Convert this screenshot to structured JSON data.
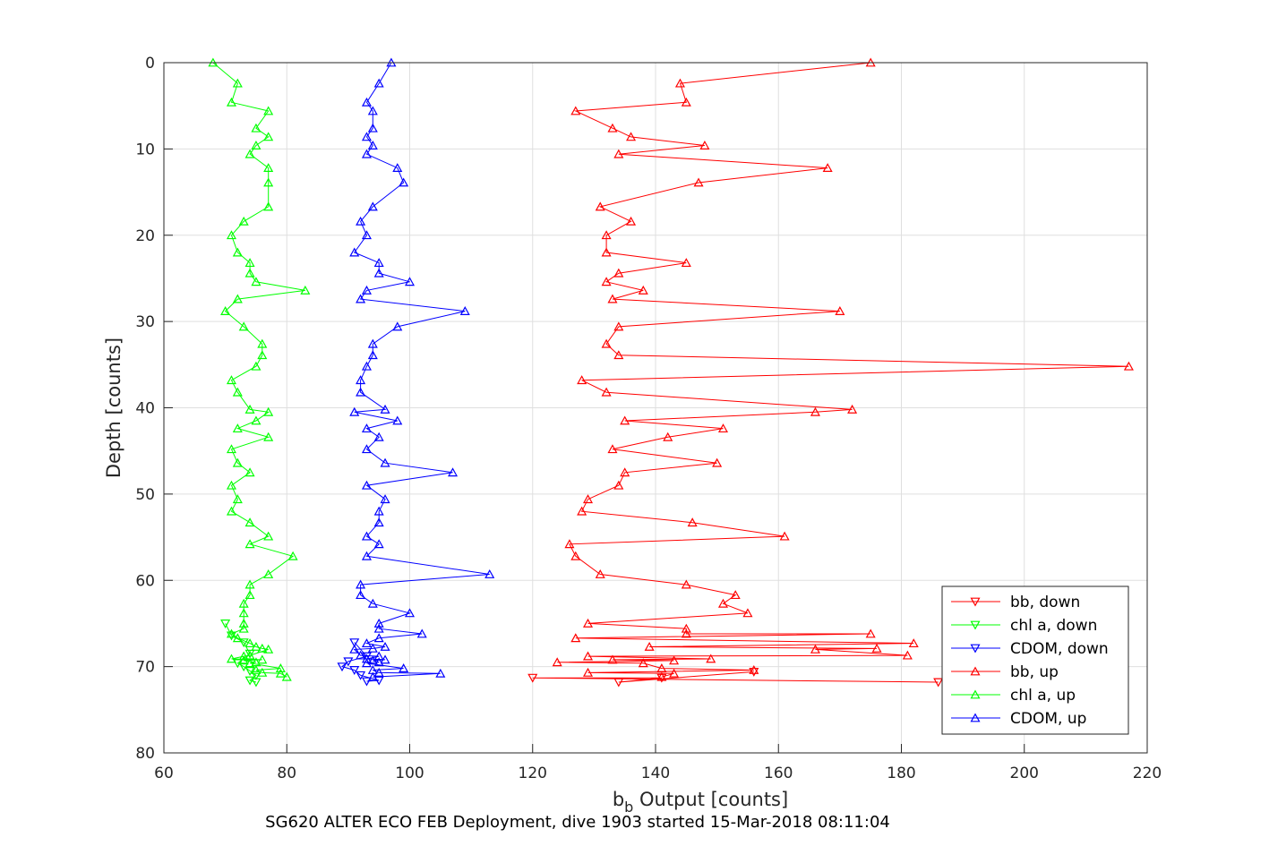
{
  "chart_data": {
    "type": "line",
    "xlabel": "b",
    "xlabel_sub": "b",
    "xlabel_rest": " Output [counts]",
    "ylabel": "Depth [counts]",
    "caption": "SG620 ALTER ECO FEB Deployment, dive 1903 started 15-Mar-2018 08:11:04",
    "xlim": [
      60,
      220
    ],
    "ylim": [
      0,
      80
    ],
    "y_reversed": true,
    "grid": true,
    "legend_position": "bottom-right",
    "xticks": [
      "60",
      "80",
      "100",
      "120",
      "140",
      "160",
      "180",
      "200",
      "220"
    ],
    "yticks": [
      "0",
      "10",
      "20",
      "30",
      "40",
      "50",
      "60",
      "70",
      "80"
    ],
    "series": [
      {
        "name": "bb, down",
        "color": "#ff0000",
        "marker": "triangle-down",
        "x": [
          186,
          120,
          141,
          134,
          156
        ],
        "y": [
          71.8,
          71.3,
          71.3,
          71.8,
          70.6
        ]
      },
      {
        "name": "chl a, down",
        "color": "#00ff00",
        "marker": "triangle-down",
        "x": [
          70,
          71,
          73,
          74,
          72,
          73,
          74,
          75,
          74,
          75
        ],
        "y": [
          65.0,
          66.4,
          67.2,
          68.5,
          69.6,
          70.0,
          70.5,
          71.0,
          71.6,
          71.8
        ]
      },
      {
        "name": "CDOM, down",
        "color": "#0000ff",
        "marker": "triangle-down",
        "x": [
          91,
          93,
          90,
          89,
          91,
          92,
          95,
          93
        ],
        "y": [
          67.2,
          68.8,
          69.4,
          70.0,
          70.4,
          71.0,
          71.6,
          71.7
        ]
      },
      {
        "name": "bb, up",
        "color": "#ff0000",
        "marker": "triangle-up",
        "x": [
          175,
          144,
          145,
          127,
          133,
          136,
          148,
          134,
          168,
          147,
          131,
          136,
          132,
          132,
          145,
          134,
          132,
          138,
          133,
          170,
          134,
          132,
          134,
          217,
          128,
          132,
          172,
          166,
          135,
          151,
          142,
          133,
          150,
          135,
          134,
          129,
          128,
          146,
          161,
          126,
          127,
          131,
          145,
          153,
          151,
          155,
          129,
          145,
          145,
          175,
          127,
          182,
          139,
          176,
          166,
          181,
          129,
          149,
          133,
          143,
          124,
          138,
          141,
          156,
          129,
          143,
          141
        ],
        "y": [
          0,
          2.4,
          4.6,
          5.6,
          7.6,
          8.6,
          9.6,
          10.6,
          12.2,
          13.9,
          16.7,
          18.4,
          20.0,
          22.0,
          23.2,
          24.4,
          25.4,
          26.4,
          27.4,
          28.8,
          30.6,
          32.6,
          33.9,
          35.2,
          36.8,
          38.2,
          40.2,
          40.5,
          41.5,
          42.4,
          43.4,
          44.8,
          46.4,
          47.5,
          49.0,
          50.6,
          52.0,
          53.3,
          54.9,
          55.8,
          57.2,
          59.3,
          60.5,
          61.7,
          62.7,
          63.8,
          65.0,
          65.6,
          66.2,
          66.2,
          66.7,
          67.3,
          67.7,
          67.9,
          68.0,
          68.7,
          68.8,
          69.1,
          69.2,
          69.3,
          69.5,
          69.6,
          70.2,
          70.4,
          70.7,
          70.8,
          71.2
        ]
      },
      {
        "name": "chl a, up",
        "color": "#00ff00",
        "marker": "triangle-up",
        "x": [
          68,
          72,
          71,
          77,
          75,
          77,
          75,
          74,
          77,
          77,
          77,
          73,
          71,
          72,
          74,
          74,
          75,
          83,
          72,
          70,
          73,
          76,
          76,
          75,
          71,
          72,
          74,
          77,
          75,
          72,
          77,
          71,
          72,
          74,
          71,
          72,
          71,
          74,
          77,
          74,
          81,
          77,
          74,
          74,
          73,
          73,
          73,
          73,
          71,
          72,
          74,
          75,
          76,
          77,
          74,
          73,
          71,
          76,
          73,
          75,
          74,
          79,
          75,
          76,
          79,
          80
        ],
        "y": [
          0,
          2.4,
          4.6,
          5.6,
          7.6,
          8.6,
          9.6,
          10.6,
          12.2,
          13.9,
          16.7,
          18.4,
          20.0,
          22.0,
          23.2,
          24.4,
          25.4,
          26.4,
          27.4,
          28.8,
          30.6,
          32.6,
          33.9,
          35.2,
          36.8,
          38.2,
          40.2,
          40.5,
          41.5,
          42.4,
          43.4,
          44.8,
          46.4,
          47.5,
          49.0,
          50.6,
          52.0,
          53.3,
          54.9,
          55.8,
          57.2,
          59.3,
          60.5,
          61.7,
          62.7,
          63.8,
          65.0,
          65.6,
          66.2,
          66.7,
          67.3,
          67.7,
          67.9,
          68.0,
          68.7,
          68.8,
          69.1,
          69.2,
          69.3,
          69.5,
          69.6,
          70.2,
          70.4,
          70.7,
          70.8,
          71.2
        ]
      },
      {
        "name": "CDOM, up",
        "color": "#0000ff",
        "marker": "triangle-up",
        "x": [
          97,
          95,
          93,
          94,
          94,
          93,
          94,
          93,
          98,
          99,
          94,
          92,
          93,
          91,
          95,
          95,
          100,
          93,
          92,
          109,
          98,
          94,
          94,
          93,
          92,
          92,
          96,
          91,
          98,
          93,
          95,
          93,
          96,
          107,
          93,
          96,
          95,
          95,
          93,
          95,
          93,
          113,
          92,
          92,
          94,
          100,
          95,
          95,
          102,
          95,
          93,
          96,
          94,
          91,
          92,
          95,
          93,
          96,
          94,
          95,
          93,
          99,
          94,
          95,
          105,
          94
        ],
        "y": [
          0,
          2.4,
          4.6,
          5.6,
          7.6,
          8.6,
          9.6,
          10.6,
          12.2,
          13.9,
          16.7,
          18.4,
          20.0,
          22.0,
          23.2,
          24.4,
          25.4,
          26.4,
          27.4,
          28.8,
          30.6,
          32.6,
          33.9,
          35.2,
          36.8,
          38.2,
          40.2,
          40.5,
          41.5,
          42.4,
          43.4,
          44.8,
          46.4,
          47.5,
          49.0,
          50.6,
          52.0,
          53.3,
          54.9,
          55.8,
          57.2,
          59.3,
          60.5,
          61.7,
          62.7,
          63.8,
          65.0,
          65.6,
          66.2,
          66.7,
          67.3,
          67.7,
          67.9,
          68.0,
          68.7,
          68.8,
          69.1,
          69.2,
          69.3,
          69.5,
          69.6,
          70.2,
          70.4,
          70.7,
          70.8,
          71.2
        ]
      }
    ]
  }
}
